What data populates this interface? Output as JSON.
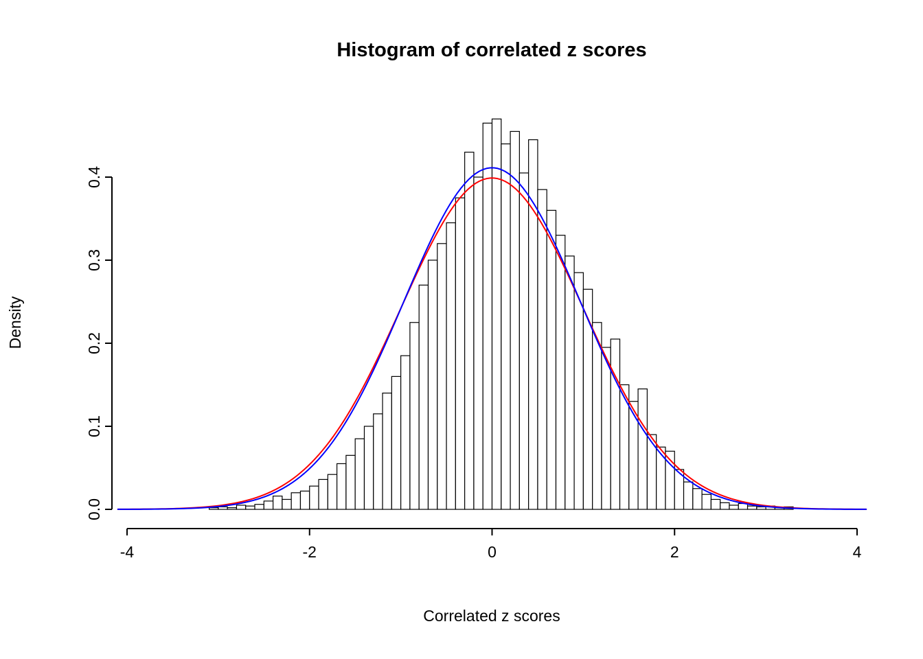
{
  "title": "Histogram of correlated z scores",
  "chart_data": {
    "type": "bar",
    "subtype": "histogram-with-density-overlays",
    "title": "Histogram of correlated z scores",
    "xlabel": "Correlated z scores",
    "ylabel": "Density",
    "xlim": [
      -4.2,
      4.2
    ],
    "ylim": [
      0,
      0.4
    ],
    "x_ticks": [
      -4,
      -2,
      0,
      2,
      4
    ],
    "x_tick_labels": [
      "-4",
      "-2",
      "0",
      "2",
      "4"
    ],
    "y_ticks": [
      0.0,
      0.1,
      0.2,
      0.3,
      0.4
    ],
    "y_tick_labels": [
      "0.0",
      "0.1",
      "0.2",
      "0.3",
      "0.4"
    ],
    "bin_width": 0.1,
    "bar_fill": "#ffffff",
    "bar_stroke": "#000000",
    "bin_start": [
      -3.1,
      -3.0,
      -2.9,
      -2.8,
      -2.7,
      -2.6,
      -2.5,
      -2.4,
      -2.3,
      -2.2,
      -2.1,
      -2.0,
      -1.9,
      -1.8,
      -1.7,
      -1.6,
      -1.5,
      -1.4,
      -1.3,
      -1.2,
      -1.1,
      -1.0,
      -0.9,
      -0.8,
      -0.7,
      -0.6,
      -0.5,
      -0.4,
      -0.3,
      -0.2,
      -0.1,
      0.0,
      0.1,
      0.2,
      0.3,
      0.4,
      0.5,
      0.6,
      0.7,
      0.8,
      0.9,
      1.0,
      1.1,
      1.2,
      1.3,
      1.4,
      1.5,
      1.6,
      1.7,
      1.8,
      1.9,
      2.0,
      2.1,
      2.2,
      2.3,
      2.4,
      2.5,
      2.6,
      2.7,
      2.8,
      2.9,
      3.0,
      3.1,
      3.2
    ],
    "densities": [
      0.002,
      0.003,
      0.002,
      0.005,
      0.004,
      0.006,
      0.01,
      0.016,
      0.012,
      0.02,
      0.022,
      0.028,
      0.036,
      0.042,
      0.055,
      0.065,
      0.085,
      0.1,
      0.115,
      0.14,
      0.16,
      0.185,
      0.225,
      0.27,
      0.3,
      0.32,
      0.345,
      0.375,
      0.43,
      0.4,
      0.465,
      0.47,
      0.44,
      0.455,
      0.405,
      0.445,
      0.385,
      0.36,
      0.33,
      0.305,
      0.285,
      0.265,
      0.225,
      0.195,
      0.205,
      0.15,
      0.13,
      0.145,
      0.09,
      0.075,
      0.07,
      0.048,
      0.033,
      0.025,
      0.018,
      0.012,
      0.008,
      0.005,
      0.007,
      0.004,
      0.003,
      0.004,
      0.002,
      0.003
    ],
    "curves": [
      {
        "name": "normal-distribution-curve",
        "color": "#ff0000",
        "mean": 0,
        "sd": 1.0,
        "peak": 0.399
      },
      {
        "name": "kernel-density-curve",
        "color": "#0000ff",
        "mean": 0,
        "sd": 0.97,
        "peak": 0.411
      }
    ],
    "curve_x_range": [
      -4.1,
      4.1
    ],
    "legend": "none",
    "grid": "off"
  }
}
